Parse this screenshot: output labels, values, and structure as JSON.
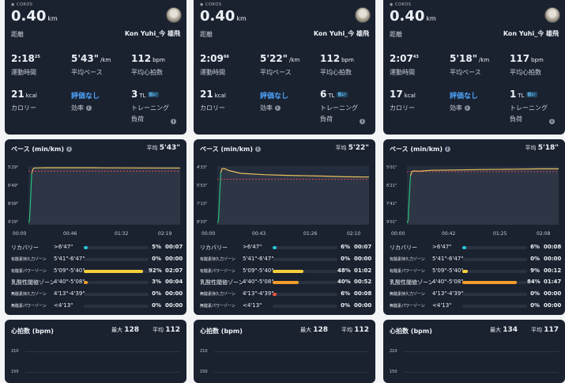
{
  "brand": "COROS",
  "zone_colors": [
    "#29c4d6",
    "#2b8de0",
    "#f6cf3a",
    "#f29b2b",
    "#e8553e",
    "#9a6cff"
  ],
  "line_color": "#e8c15a",
  "recovery_line_color": "#27c07a",
  "panels": [
    {
      "distance": "0.40",
      "distance_unit": "km",
      "distance_label": "距離",
      "user": "Kon Yuhi_今 雄飛",
      "stats": {
        "time": "2:18",
        "time_sup": "25",
        "time_label": "運動時間",
        "pace": "5'43\"",
        "pace_unit": "/km",
        "pace_label": "平均ペース",
        "hr": "112",
        "hr_unit": "bpm",
        "hr_label": "平均心拍数",
        "cal": "21",
        "cal_unit": "kcal",
        "cal_label": "カロリー",
        "eff": "評価なし",
        "eff_label": "効率",
        "load": "3",
        "load_unit": "TL",
        "load_badge": "低い",
        "load_label": "トレーニング",
        "load_label2": "負荷"
      },
      "pace_title": "ペース (min/km)",
      "pace_avg_label": "平均",
      "pace_avg": "5'43\"",
      "y_ticks": [
        "5'29\"",
        "6'49\"",
        "8'09\"",
        "9'29\""
      ],
      "x_ticks": [
        "00:00",
        "00:46",
        "01:32",
        "02:19"
      ],
      "pace_series": {
        "x": [
          0,
          1,
          2,
          3,
          4,
          5,
          8,
          15,
          30,
          60,
          90,
          120,
          139
        ],
        "y": [
          9.48,
          9.2,
          7.6,
          5.9,
          5.6,
          5.5,
          5.49,
          5.48,
          5.48,
          5.48,
          5.49,
          5.5,
          5.5
        ]
      },
      "pace_min": 5.48,
      "pace_max": 9.48,
      "time_max": 139,
      "avg_pace_value": 5.72,
      "zones": [
        {
          "name": "リカバリー",
          "small": false,
          "range": ">6'47\"",
          "pct": 5,
          "time": "00:07"
        },
        {
          "name": "有酸素持久力ゾーン",
          "small": true,
          "range": "5'41\"-6'47\"",
          "pct": 0,
          "time": "00:00"
        },
        {
          "name": "有酸素パワーゾーン",
          "small": true,
          "range": "5'09\"-5'40\"",
          "pct": 92,
          "time": "02:07"
        },
        {
          "name": "乳酸性閾値ゾーン",
          "small": false,
          "range": "4'40\"-5'08\"",
          "pct": 3,
          "time": "00:04"
        },
        {
          "name": "無酸素持久力ゾーン",
          "small": true,
          "range": "4'13\"-4'39\"",
          "pct": 0,
          "time": "00:00"
        },
        {
          "name": "無酸素パワーゾーン",
          "small": true,
          "range": "<4'13\"",
          "pct": 0,
          "time": "00:00"
        }
      ],
      "hr_title": "心拍数 (bpm)",
      "hr_max_label": "最大",
      "hr_max": "128",
      "hr_avg_label": "平均",
      "hr_avg": "112",
      "hr_ticks": [
        "210",
        "150"
      ]
    },
    {
      "distance": "0.40",
      "distance_unit": "km",
      "distance_label": "距離",
      "user": "Kon Yuhi_今 雄飛",
      "stats": {
        "time": "2:09",
        "time_sup": "66",
        "time_label": "運動時間",
        "pace": "5'22\"",
        "pace_unit": "/km",
        "pace_label": "平均ペース",
        "hr": "112",
        "hr_unit": "bpm",
        "hr_label": "平均心拍数",
        "cal": "21",
        "cal_unit": "kcal",
        "cal_label": "カロリー",
        "eff": "評価なし",
        "eff_label": "効率",
        "load": "6",
        "load_unit": "TL",
        "load_badge": "低い",
        "load_label": "トレーニング",
        "load_label2": "負荷"
      },
      "pace_title": "ペース (min/km)",
      "pace_avg_label": "平均",
      "pace_avg": "5'22\"",
      "y_ticks": [
        "4'33\"",
        "5'53\"",
        "7'13\"",
        "8'33\""
      ],
      "x_ticks": [
        "00:00",
        "00:43",
        "01:26",
        "02:10"
      ],
      "pace_series": {
        "x": [
          0,
          1,
          2,
          3,
          4,
          6,
          10,
          20,
          40,
          60,
          90,
          110,
          130
        ],
        "y": [
          8.55,
          8.3,
          6.5,
          4.9,
          4.62,
          4.6,
          4.75,
          4.95,
          5.05,
          5.1,
          5.15,
          5.2,
          5.22
        ]
      },
      "pace_min": 4.55,
      "pace_max": 8.55,
      "time_max": 130,
      "avg_pace_value": 5.37,
      "zones": [
        {
          "name": "リカバリー",
          "small": false,
          "range": ">6'47\"",
          "pct": 6,
          "time": "00:07"
        },
        {
          "name": "有酸素持久力ゾーン",
          "small": true,
          "range": "5'41\"-6'47\"",
          "pct": 0,
          "time": "00:00"
        },
        {
          "name": "有酸素パワーゾーン",
          "small": true,
          "range": "5'09\"-5'40\"",
          "pct": 48,
          "time": "01:02"
        },
        {
          "name": "乳酸性閾値ゾーン",
          "small": false,
          "range": "4'40\"-5'08\"",
          "pct": 40,
          "time": "00:52"
        },
        {
          "name": "無酸素持久力ゾーン",
          "small": true,
          "range": "4'13\"-4'39\"",
          "pct": 6,
          "time": "00:08"
        },
        {
          "name": "無酸素パワーゾーン",
          "small": true,
          "range": "<4'13\"",
          "pct": 0,
          "time": "00:00"
        }
      ],
      "hr_title": "心拍数 (bpm)",
      "hr_max_label": "最大",
      "hr_max": "128",
      "hr_avg_label": "平均",
      "hr_avg": "112",
      "hr_ticks": [
        "210",
        "150"
      ]
    },
    {
      "distance": "0.40",
      "distance_unit": "km",
      "distance_label": "距離",
      "user": "Kon Yuhi_今 雄飛",
      "stats": {
        "time": "2:07",
        "time_sup": "43",
        "time_label": "運動時間",
        "pace": "5'18\"",
        "pace_unit": "/km",
        "pace_label": "平均ペース",
        "hr": "117",
        "hr_unit": "bpm",
        "hr_label": "平均心拍数",
        "cal": "17",
        "cal_unit": "kcal",
        "cal_label": "カロリー",
        "eff": "評価なし",
        "eff_label": "効率",
        "load": "1",
        "load_unit": "TL",
        "load_badge": "低い",
        "load_label": "トレーニング",
        "load_label2": "負荷"
      },
      "pace_title": "ペース (min/km)",
      "pace_avg_label": "平均",
      "pace_avg": "5'18\"",
      "y_ticks": [
        "5'01\"",
        "6'21\"",
        "7'41\"",
        "9'01\""
      ],
      "x_ticks": [
        "00:00",
        "00:42",
        "01:25",
        "02:08"
      ],
      "pace_series": {
        "x": [
          0,
          1,
          2,
          3,
          4,
          6,
          10,
          20,
          40,
          60,
          90,
          110,
          128
        ],
        "y": [
          9.02,
          8.8,
          7.0,
          5.6,
          5.3,
          5.25,
          5.27,
          5.2,
          5.18,
          5.15,
          5.12,
          5.1,
          5.1
        ]
      },
      "pace_min": 5.02,
      "pace_max": 9.02,
      "time_max": 128,
      "avg_pace_value": 5.3,
      "zones": [
        {
          "name": "リカバリー",
          "small": false,
          "range": ">6'47\"",
          "pct": 6,
          "time": "00:08"
        },
        {
          "name": "有酸素持久力ゾーン",
          "small": true,
          "range": "5'41\"-6'47\"",
          "pct": 0,
          "time": "00:00"
        },
        {
          "name": "有酸素パワーゾーン",
          "small": true,
          "range": "5'09\"-5'40\"",
          "pct": 9,
          "time": "00:12"
        },
        {
          "name": "乳酸性閾値ゾーン",
          "small": false,
          "range": "4'40\"-5'08\"",
          "pct": 84,
          "time": "01:47"
        },
        {
          "name": "無酸素持久力ゾーン",
          "small": true,
          "range": "4'13\"-4'39\"",
          "pct": 0,
          "time": "00:00"
        },
        {
          "name": "無酸素パワーゾーン",
          "small": true,
          "range": "<4'13\"",
          "pct": 0,
          "time": "00:00"
        }
      ],
      "hr_title": "心拍数 (bpm)",
      "hr_max_label": "最大",
      "hr_max": "134",
      "hr_avg_label": "平均",
      "hr_avg": "117",
      "hr_ticks": [
        "210",
        "150"
      ]
    }
  ]
}
